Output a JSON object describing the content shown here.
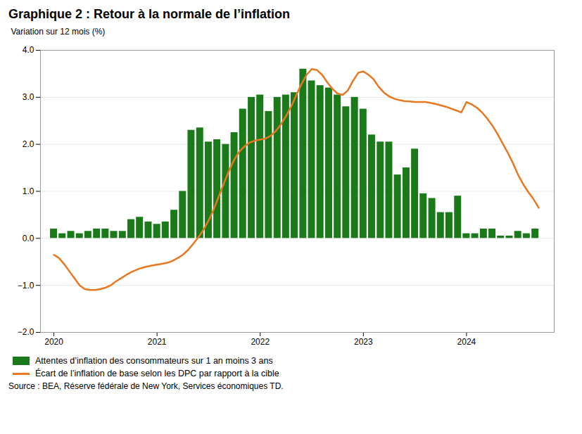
{
  "chart_data": {
    "type": "bar",
    "title": "Graphique 2 : Retour à la normale de l’inflation",
    "ylabel": "Variation sur 12 mois (%)",
    "source": "Source : BEA, Réserve fédérale de New York, Services économiques TD.",
    "series": [
      {
        "name": "Attentes d’inflation des consommateurs sur 1 an moins 3 ans",
        "type": "bar",
        "color": "#1a7a1a",
        "x": [
          2020.0,
          2020.083,
          2020.167,
          2020.25,
          2020.333,
          2020.417,
          2020.5,
          2020.583,
          2020.667,
          2020.75,
          2020.833,
          2020.917,
          2021.0,
          2021.083,
          2021.167,
          2021.25,
          2021.333,
          2021.417,
          2021.5,
          2021.583,
          2021.667,
          2021.75,
          2021.833,
          2021.917,
          2022.0,
          2022.083,
          2022.167,
          2022.25,
          2022.333,
          2022.417,
          2022.5,
          2022.583,
          2022.667,
          2022.75,
          2022.833,
          2022.917,
          2023.0,
          2023.083,
          2023.167,
          2023.25,
          2023.333,
          2023.417,
          2023.5,
          2023.583,
          2023.667,
          2023.75,
          2023.833,
          2023.917,
          2024.0,
          2024.083,
          2024.167,
          2024.25,
          2024.333,
          2024.417,
          2024.5,
          2024.583,
          2024.667
        ],
        "values": [
          0.2,
          0.1,
          0.15,
          0.1,
          0.15,
          0.2,
          0.2,
          0.15,
          0.15,
          0.4,
          0.45,
          0.35,
          0.3,
          0.35,
          0.6,
          1.0,
          2.3,
          2.35,
          2.05,
          2.1,
          2.0,
          2.25,
          2.75,
          3.0,
          3.05,
          2.7,
          3.0,
          3.05,
          3.1,
          3.6,
          3.35,
          3.25,
          3.2,
          3.05,
          2.8,
          3.0,
          2.75,
          2.2,
          2.05,
          2.05,
          1.35,
          1.5,
          1.9,
          0.95,
          0.85,
          0.55,
          0.55,
          0.9,
          0.1,
          0.1,
          0.2,
          0.2,
          0.05,
          0.05,
          0.15,
          0.1,
          0.2
        ]
      },
      {
        "name": "Écart de l’inflation de base selon les DPC par rapport à la cible",
        "type": "line",
        "color": "#e87722",
        "x": [
          2020.0,
          2020.05,
          2020.1,
          2020.15,
          2020.2,
          2020.25,
          2020.3,
          2020.35,
          2020.4,
          2020.45,
          2020.5,
          2020.55,
          2020.6,
          2020.65,
          2020.7,
          2020.75,
          2020.8,
          2020.85,
          2020.9,
          2020.95,
          2021.0,
          2021.05,
          2021.1,
          2021.15,
          2021.2,
          2021.25,
          2021.3,
          2021.35,
          2021.4,
          2021.45,
          2021.5,
          2021.55,
          2021.6,
          2021.65,
          2021.7,
          2021.75,
          2021.8,
          2021.85,
          2021.9,
          2021.95,
          2022.0,
          2022.05,
          2022.1,
          2022.15,
          2022.2,
          2022.25,
          2022.3,
          2022.35,
          2022.4,
          2022.45,
          2022.5,
          2022.55,
          2022.6,
          2022.65,
          2022.7,
          2022.75,
          2022.8,
          2022.85,
          2022.9,
          2022.95,
          2023.0,
          2023.05,
          2023.1,
          2023.15,
          2023.2,
          2023.25,
          2023.3,
          2023.35,
          2023.4,
          2023.45,
          2023.5,
          2023.55,
          2023.6,
          2023.65,
          2023.7,
          2023.75,
          2023.8,
          2023.85,
          2023.9,
          2023.95,
          2024.0,
          2024.05,
          2024.1,
          2024.15,
          2024.2,
          2024.25,
          2024.3,
          2024.35,
          2024.4,
          2024.45,
          2024.5,
          2024.55,
          2024.6,
          2024.65,
          2024.7
        ],
        "values": [
          -0.35,
          -0.42,
          -0.55,
          -0.7,
          -0.85,
          -1.0,
          -1.08,
          -1.1,
          -1.1,
          -1.08,
          -1.05,
          -1.0,
          -0.92,
          -0.85,
          -0.78,
          -0.72,
          -0.67,
          -0.63,
          -0.6,
          -0.58,
          -0.56,
          -0.54,
          -0.52,
          -0.48,
          -0.42,
          -0.35,
          -0.25,
          -0.12,
          0.02,
          0.18,
          0.38,
          0.62,
          0.9,
          1.18,
          1.45,
          1.68,
          1.85,
          1.96,
          2.04,
          2.08,
          2.1,
          2.12,
          2.18,
          2.28,
          2.42,
          2.6,
          2.8,
          3.05,
          3.28,
          3.48,
          3.6,
          3.58,
          3.48,
          3.32,
          3.18,
          3.08,
          3.05,
          3.15,
          3.35,
          3.52,
          3.55,
          3.48,
          3.38,
          3.22,
          3.1,
          3.02,
          2.97,
          2.94,
          2.92,
          2.91,
          2.9,
          2.9,
          2.9,
          2.88,
          2.86,
          2.83,
          2.8,
          2.76,
          2.72,
          2.68,
          2.9,
          2.85,
          2.78,
          2.68,
          2.55,
          2.4,
          2.22,
          2.02,
          1.82,
          1.6,
          1.35,
          1.15,
          0.98,
          0.83,
          0.65
        ]
      }
    ],
    "xlim": [
      2019.87,
      2024.85
    ],
    "xticks": [
      2020,
      2021,
      2022,
      2023,
      2024
    ],
    "ylim": [
      -2,
      4
    ],
    "yticks": [
      -2,
      -1,
      0,
      1,
      2,
      3,
      4
    ],
    "grid": "y",
    "legend": "lower left"
  }
}
